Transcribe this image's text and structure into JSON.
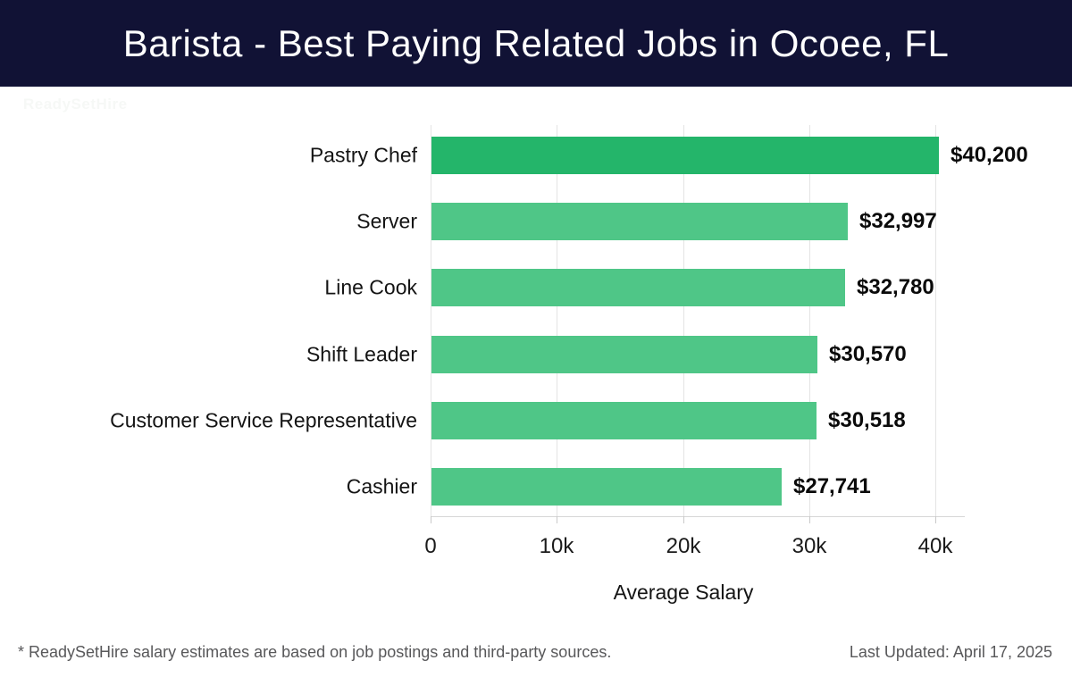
{
  "header": {
    "title": "Barista - Best Paying Related Jobs in Ocoee, FL",
    "background_color": "#111235",
    "text_color": "#ffffff"
  },
  "watermark": {
    "text": "ReadySetHire",
    "color": "#f6f8f6"
  },
  "chart_data": {
    "type": "bar",
    "orientation": "horizontal",
    "title": "Barista - Best Paying Related Jobs in Ocoee, FL",
    "categories": [
      "Pastry Chef",
      "Server",
      "Line Cook",
      "Shift Leader",
      "Customer Service Representative",
      "Cashier"
    ],
    "values": [
      40200,
      32997,
      32780,
      30570,
      30518,
      27741
    ],
    "value_labels": [
      "$40,200",
      "$32,997",
      "$32,780",
      "$30,570",
      "$30,518",
      "$27,741"
    ],
    "xlabel": "Average Salary",
    "ylabel": "",
    "x_ticks": [
      "0",
      "10k",
      "20k",
      "30k",
      "40k"
    ],
    "x_tick_values": [
      0,
      10000,
      20000,
      30000,
      40000
    ],
    "xlim": [
      0,
      42000
    ],
    "grid": true,
    "legend": false,
    "bar_color": "#4fc687",
    "highlight_color": "#24b56a",
    "highlight_index": 0
  },
  "footer": {
    "disclaimer": "* ReadySetHire salary estimates are based on job postings and third-party sources.",
    "last_updated": "Last Updated: April 17, 2025"
  }
}
